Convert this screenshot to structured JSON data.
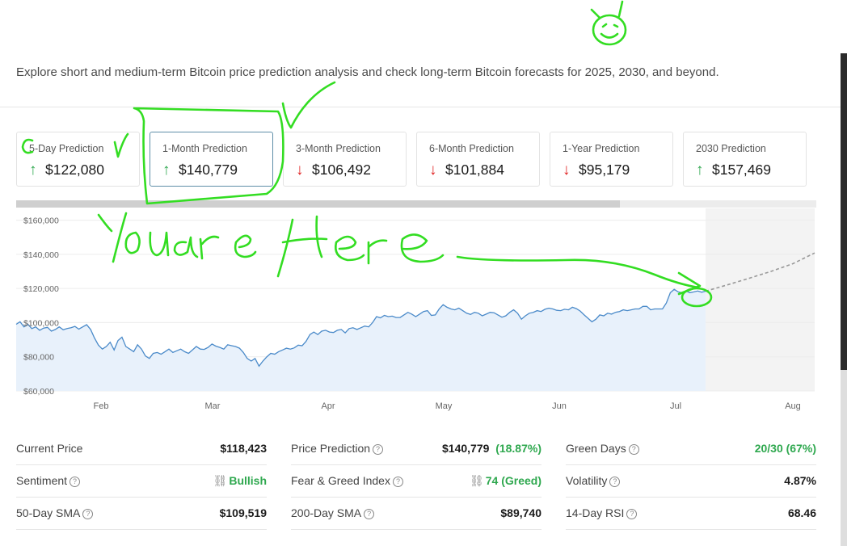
{
  "intro": "Explore short and medium-term Bitcoin price prediction analysis and check long-term Bitcoin forecasts for 2025, 2030, and beyond.",
  "predictions": [
    {
      "label": "5-Day Prediction",
      "value": "$122,080",
      "direction": "up"
    },
    {
      "label": "1-Month Prediction",
      "value": "$140,779",
      "direction": "up"
    },
    {
      "label": "3-Month Prediction",
      "value": "$106,492",
      "direction": "down"
    },
    {
      "label": "6-Month Prediction",
      "value": "$101,884",
      "direction": "down"
    },
    {
      "label": "1-Year Prediction",
      "value": "$95,179",
      "direction": "down"
    },
    {
      "label": "2030 Prediction",
      "value": "$157,469",
      "direction": "up"
    }
  ],
  "arrows": {
    "up": "↑",
    "down": "↓"
  },
  "range_selector": {
    "visible_fraction": 0.755
  },
  "chart_data": {
    "type": "line",
    "y_ticks": [
      "$160,000",
      "$140,000",
      "$120,000",
      "$100,000",
      "$80,000",
      "$60,000"
    ],
    "ylim": [
      60000,
      165000
    ],
    "x_ticks": [
      "Feb",
      "Mar",
      "Apr",
      "May",
      "Jun",
      "Jul",
      "Aug"
    ],
    "series": [
      {
        "kind": "historical",
        "values": [
          99000,
          100500,
          97500,
          99000,
          96500,
          97500,
          95500,
          96800,
          97200,
          95000,
          96000,
          97500,
          95800,
          96500,
          97000,
          97800,
          96200,
          97500,
          98800,
          96000,
          91000,
          86800,
          84500,
          86000,
          88500,
          84000,
          89500,
          91500,
          86000,
          84500,
          83000,
          87000,
          84500,
          80500,
          79000,
          82000,
          82500,
          81500,
          83000,
          84500,
          82500,
          83500,
          84500,
          83000,
          82000,
          84000,
          86000,
          84500,
          84300,
          85500,
          87500,
          86200,
          85500,
          84500,
          87000,
          86500,
          86000,
          85000,
          82500,
          79000,
          77500,
          79000,
          74500,
          77500,
          80000,
          82000,
          81500,
          83000,
          84000,
          85000,
          84500,
          85200,
          86800,
          86500,
          89000,
          93000,
          94500,
          93000,
          95000,
          95500,
          94500,
          94200,
          95500,
          96000,
          94000,
          96500,
          97000,
          96000,
          97000,
          98000,
          97500,
          100000,
          103500,
          102800,
          104200,
          103500,
          103800,
          103000,
          103000,
          104500,
          106000,
          105000,
          103500,
          105000,
          106500,
          107000,
          104200,
          104500,
          108000,
          110500,
          109000,
          108000,
          107500,
          108500,
          107000,
          105500,
          104800,
          106000,
          105500,
          104000,
          105000,
          106000,
          105800,
          104500,
          103200,
          104000,
          106000,
          107500,
          105500,
          102000,
          104000,
          105500,
          106000,
          107000,
          106500,
          107800,
          108500,
          108000,
          107200,
          107000,
          107800,
          107500,
          109000,
          108200,
          106800,
          104500,
          102500,
          100500,
          102000,
          104500,
          104000,
          105500,
          105000,
          106000,
          106500,
          107500,
          107000,
          107500,
          108000,
          108000,
          109500,
          109500,
          107500,
          108000,
          108000,
          108000,
          111500,
          117500,
          119500,
          118000,
          117500,
          118500,
          117500,
          118000,
          118500,
          117800,
          118423
        ]
      },
      {
        "kind": "forecast",
        "values": [
          118423,
          122080,
          126000,
          130000,
          134500,
          140779
        ]
      }
    ]
  },
  "stats": [
    {
      "label": "Current Price",
      "value": "$118,423"
    },
    {
      "label": "Sentiment",
      "value": "Bullish"
    },
    {
      "label": "50-Day SMA",
      "value": "$109,519"
    },
    {
      "label": "Price Prediction",
      "value": "$140,779",
      "change": "(18.87%)"
    },
    {
      "label": "Fear & Greed Index",
      "value": "74 (Greed)"
    },
    {
      "label": "200-Day SMA",
      "value": "$89,740"
    },
    {
      "label": "Green Days",
      "value": "20/30 (67%)"
    },
    {
      "label": "Volatility",
      "value": "4.87%"
    },
    {
      "label": "14-Day RSI",
      "value": "68.46"
    }
  ],
  "icons": {
    "help": "?",
    "link": "🔗"
  },
  "colors": {
    "up": "#2fa84f",
    "down": "#e02020",
    "line": "#4a8ac9",
    "area": "#e8f1fb",
    "annotation": "#33dd22"
  }
}
